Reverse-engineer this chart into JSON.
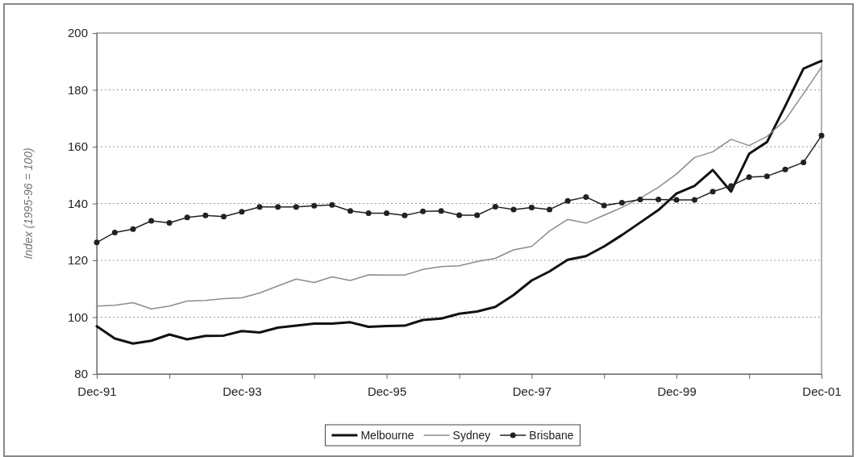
{
  "chart_data": {
    "type": "line",
    "ylabel": "Index (1995-96 = 100)",
    "x": [
      "1991-12",
      "1992-03",
      "1992-06",
      "1992-09",
      "1992-12",
      "1993-03",
      "1993-06",
      "1993-09",
      "1993-12",
      "1994-03",
      "1994-06",
      "1994-09",
      "1994-12",
      "1995-03",
      "1995-06",
      "1995-09",
      "1995-12",
      "1996-03",
      "1996-06",
      "1996-09",
      "1996-12",
      "1997-03",
      "1997-06",
      "1997-09",
      "1997-12",
      "1998-03",
      "1998-06",
      "1998-09",
      "1998-12",
      "1999-03",
      "1999-06",
      "1999-09",
      "1999-12",
      "2000-03",
      "2000-06",
      "2000-09",
      "2000-12",
      "2001-03",
      "2001-06",
      "2001-09",
      "2001-12"
    ],
    "series": [
      {
        "name": "Melbourne",
        "color": "#111111",
        "marker": "none",
        "values": [
          96.8,
          92.5,
          90.7,
          91.7,
          93.9,
          92.2,
          93.4,
          93.5,
          95.1,
          94.6,
          96.3,
          97,
          97.7,
          97.7,
          98.2,
          96.6,
          96.9,
          97,
          99,
          99.5,
          101.2,
          102,
          103.6,
          107.8,
          112.9,
          116.1,
          120.2,
          121.5,
          124.9,
          128.9,
          133.3,
          137.7,
          143.5,
          146.2,
          151.8,
          144.2,
          157.5,
          161.6,
          174.3,
          187.5,
          190.2
        ]
      },
      {
        "name": "Sydney",
        "color": "#8c8c8c",
        "marker": "none",
        "values": [
          103.9,
          104.2,
          105.1,
          102.9,
          103.9,
          105.7,
          105.9,
          106.5,
          106.8,
          108.5,
          111,
          113.4,
          112.2,
          114.2,
          112.9,
          114.9,
          114.8,
          114.8,
          116.8,
          117.8,
          118.1,
          119.6,
          120.7,
          123.7,
          124.9,
          130.3,
          134.4,
          133.1,
          135.9,
          138.6,
          141.9,
          145.7,
          150.4,
          156.2,
          158.2,
          162.6,
          160.4,
          163.6,
          169.4,
          178.7,
          188
        ]
      },
      {
        "name": "Brisbane",
        "color": "#222222",
        "marker": "circle",
        "values": [
          126.3,
          129.8,
          131,
          133.9,
          133.2,
          135.1,
          135.8,
          135.4,
          137.1,
          138.8,
          138.8,
          138.8,
          139.2,
          139.5,
          137.4,
          136.6,
          136.6,
          135.8,
          137.2,
          137.4,
          135.9,
          135.9,
          138.9,
          137.9,
          138.6,
          137.9,
          140.9,
          142.3,
          139.3,
          140.3,
          141.4,
          141.4,
          141.3,
          141.3,
          144.2,
          146.2,
          149.3,
          149.6,
          152,
          154.5,
          163.9
        ]
      }
    ],
    "xlim": [
      "1991-12",
      "2001-12"
    ],
    "xticks": [
      {
        "value": "1991-12",
        "label": "Dec-91"
      },
      {
        "value": "1992-12",
        "label": null
      },
      {
        "value": "1993-12",
        "label": "Dec-93"
      },
      {
        "value": "1994-12",
        "label": null
      },
      {
        "value": "1995-12",
        "label": "Dec-95"
      },
      {
        "value": "1996-12",
        "label": null
      },
      {
        "value": "1997-12",
        "label": "Dec-97"
      },
      {
        "value": "1998-12",
        "label": null
      },
      {
        "value": "1999-12",
        "label": "Dec-99"
      },
      {
        "value": "2000-12",
        "label": null
      },
      {
        "value": "2001-12",
        "label": "Dec-01"
      }
    ],
    "ylim": [
      80,
      200
    ],
    "yticks": [
      80,
      100,
      120,
      140,
      160,
      180,
      200
    ],
    "grid": "y",
    "legend": "bottom",
    "line_style": "solid"
  }
}
